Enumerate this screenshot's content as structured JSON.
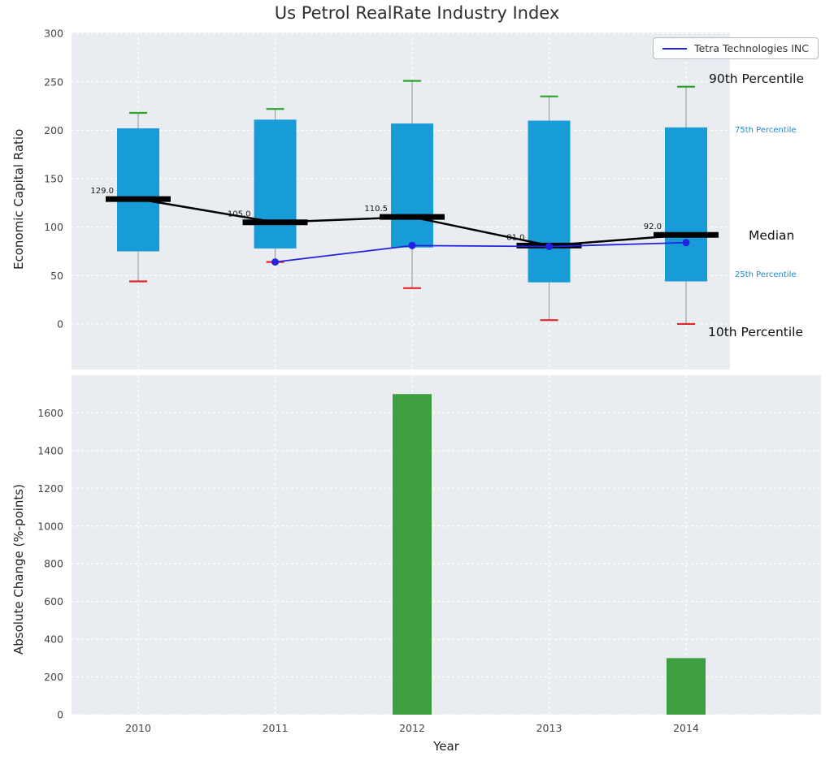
{
  "title": "Us Petrol RealRate Industry Index",
  "legend": {
    "label": "Tetra Technologies INC"
  },
  "annotations": {
    "p90": "90th Percentile",
    "p75": "75th Percentile",
    "median": "Median",
    "p25": "25th Percentile",
    "p10": "10th Percentile"
  },
  "colors": {
    "axes_bg": "#e9edf2",
    "grid": "#ffffff",
    "box_fill": "#189cd8",
    "cap_high": "#2aa52a",
    "cap_low": "#e62626",
    "median": "#000000",
    "company_line": "#2222e0",
    "bar_fill": "#3f9e3f",
    "whisker": "#a0a0a0",
    "annotation_blue": "#1b8ec6",
    "tick_label": "#444444"
  },
  "chart_data": [
    {
      "type": "boxplot",
      "title": "Us Petrol RealRate Industry Index",
      "ylabel": "Economic Capital Ratio",
      "categories": [
        "2010",
        "2011",
        "2012",
        "2013",
        "2014"
      ],
      "ylim": [
        -47,
        301
      ],
      "yticks": [
        0,
        50,
        100,
        150,
        200,
        250,
        300
      ],
      "grid": true,
      "legend_position": "upper right",
      "boxes": [
        {
          "year": "2010",
          "p10": 44,
          "p25": 75,
          "median": 129.0,
          "p75": 202,
          "p90": 218
        },
        {
          "year": "2011",
          "p10": 64,
          "p25": 78,
          "median": 105.0,
          "p75": 211,
          "p90": 222
        },
        {
          "year": "2012",
          "p10": 37,
          "p25": 79,
          "median": 110.5,
          "p75": 207,
          "p90": 251
        },
        {
          "year": "2013",
          "p10": 4,
          "p25": 43,
          "median": 81.0,
          "p75": 210,
          "p90": 235
        },
        {
          "year": "2014",
          "p10": 0,
          "p25": 44,
          "median": 92.0,
          "p75": 203,
          "p90": 245
        }
      ],
      "median_labels": [
        "129.0",
        "105.0",
        "110.5",
        "81.0",
        "92.0"
      ],
      "series": [
        {
          "name": "Tetra Technologies INC",
          "x": [
            "2011",
            "2012",
            "2013",
            "2014"
          ],
          "values": [
            64,
            81,
            80,
            84
          ]
        }
      ]
    },
    {
      "type": "bar",
      "ylabel": "Absolute Change (%-points)",
      "xlabel": "Year",
      "categories": [
        "2010",
        "2011",
        "2012",
        "2013",
        "2014"
      ],
      "values": [
        0,
        0,
        1700,
        0,
        300
      ],
      "ylim": [
        0,
        1800
      ],
      "yticks": [
        0,
        200,
        400,
        600,
        800,
        1000,
        1200,
        1400,
        1600
      ],
      "grid": true
    }
  ]
}
